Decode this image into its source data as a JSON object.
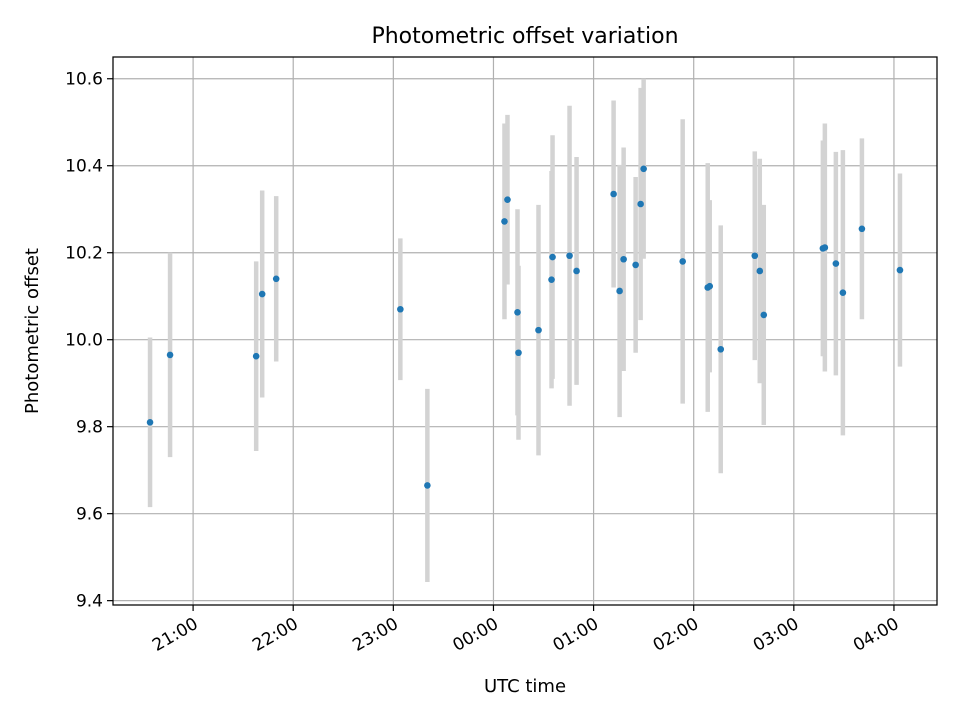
{
  "chart_data": {
    "type": "scatter",
    "title": "Photometric offset variation",
    "xlabel": "UTC time",
    "ylabel": "Photometric offset",
    "x_unit": "hours relative to 00:00 UTC",
    "xlim": [
      -3.8,
      4.43
    ],
    "ylim": [
      9.39,
      10.65
    ],
    "grid": true,
    "x_ticks": [
      {
        "value": -3,
        "label": "21:00"
      },
      {
        "value": -2,
        "label": "22:00"
      },
      {
        "value": -1,
        "label": "23:00"
      },
      {
        "value": 0,
        "label": "00:00"
      },
      {
        "value": 1,
        "label": "01:00"
      },
      {
        "value": 2,
        "label": "02:00"
      },
      {
        "value": 3,
        "label": "03:00"
      },
      {
        "value": 4,
        "label": "04:00"
      }
    ],
    "y_ticks": [
      {
        "value": 9.4,
        "label": "9.4"
      },
      {
        "value": 9.6,
        "label": "9.6"
      },
      {
        "value": 9.8,
        "label": "9.8"
      },
      {
        "value": 10.0,
        "label": "10.0"
      },
      {
        "value": 10.2,
        "label": "10.2"
      },
      {
        "value": 10.4,
        "label": "10.4"
      },
      {
        "value": 10.6,
        "label": "10.6"
      }
    ],
    "colors": {
      "point": "#1f77b4",
      "errorbar": "#d3d3d3",
      "grid": "#b0b0b0",
      "axis": "#000000"
    },
    "series": [
      {
        "name": "offset",
        "points": [
          {
            "x": -3.43,
            "y": 9.81,
            "err": 0.195
          },
          {
            "x": -3.23,
            "y": 9.965,
            "err": 0.235
          },
          {
            "x": -2.37,
            "y": 9.962,
            "err": 0.218
          },
          {
            "x": -2.31,
            "y": 10.105,
            "err": 0.238
          },
          {
            "x": -2.17,
            "y": 10.14,
            "err": 0.19
          },
          {
            "x": -0.93,
            "y": 10.07,
            "err": 0.163
          },
          {
            "x": -0.66,
            "y": 9.665,
            "err": 0.222
          },
          {
            "x": 0.11,
            "y": 10.272,
            "err": 0.225
          },
          {
            "x": 0.14,
            "y": 10.322,
            "err": 0.195
          },
          {
            "x": 0.24,
            "y": 10.063,
            "err": 0.237
          },
          {
            "x": 0.25,
            "y": 9.97,
            "err": 0.2
          },
          {
            "x": 0.45,
            "y": 10.022,
            "err": 0.288
          },
          {
            "x": 0.58,
            "y": 10.138,
            "err": 0.25
          },
          {
            "x": 0.59,
            "y": 10.19,
            "err": 0.28
          },
          {
            "x": 0.76,
            "y": 10.193,
            "err": 0.345
          },
          {
            "x": 0.83,
            "y": 10.158,
            "err": 0.262
          },
          {
            "x": 1.2,
            "y": 10.335,
            "err": 0.215
          },
          {
            "x": 1.26,
            "y": 10.112,
            "err": 0.29
          },
          {
            "x": 1.3,
            "y": 10.185,
            "err": 0.257
          },
          {
            "x": 1.42,
            "y": 10.172,
            "err": 0.202
          },
          {
            "x": 1.47,
            "y": 10.312,
            "err": 0.267
          },
          {
            "x": 1.5,
            "y": 10.393,
            "err": 0.207
          },
          {
            "x": 1.89,
            "y": 10.18,
            "err": 0.327
          },
          {
            "x": 2.14,
            "y": 10.12,
            "err": 0.286
          },
          {
            "x": 2.16,
            "y": 10.123,
            "err": 0.198
          },
          {
            "x": 2.27,
            "y": 9.978,
            "err": 0.285
          },
          {
            "x": 2.61,
            "y": 10.193,
            "err": 0.24
          },
          {
            "x": 2.66,
            "y": 10.158,
            "err": 0.258
          },
          {
            "x": 2.7,
            "y": 10.057,
            "err": 0.253
          },
          {
            "x": 3.29,
            "y": 10.21,
            "err": 0.248
          },
          {
            "x": 3.31,
            "y": 10.212,
            "err": 0.285
          },
          {
            "x": 3.42,
            "y": 10.175,
            "err": 0.257
          },
          {
            "x": 3.49,
            "y": 10.108,
            "err": 0.328
          },
          {
            "x": 3.68,
            "y": 10.255,
            "err": 0.208
          },
          {
            "x": 4.06,
            "y": 10.16,
            "err": 0.222
          }
        ]
      }
    ]
  }
}
